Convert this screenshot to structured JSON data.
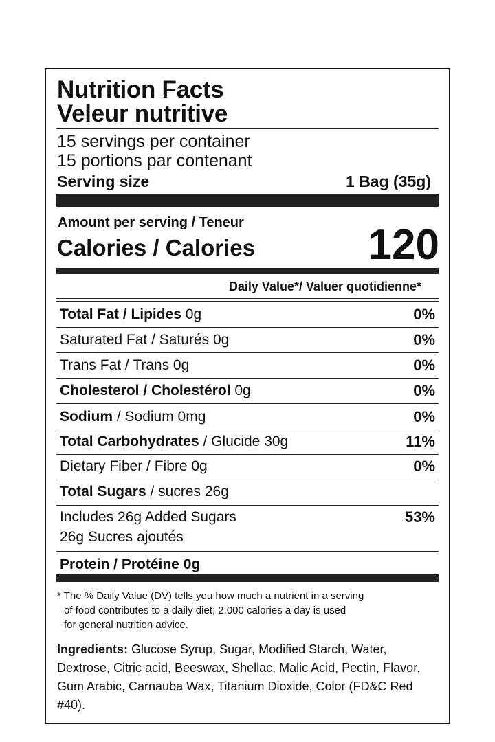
{
  "header": {
    "title_en": "Nutrition Facts",
    "title_fr": "Veleur nutritive"
  },
  "servings": {
    "per_container_en": "15 servings per container",
    "per_container_fr": "15 portions par contenant",
    "size_label": "Serving size",
    "size_value": "1 Bag (35g)"
  },
  "calories": {
    "amount_label": "Amount per serving / Teneur",
    "label": "Calories / Calories",
    "value": "120"
  },
  "daily_value_header": "Daily Value*/ Valuer quotidienne*",
  "nutrients": [
    {
      "bold": "Total Fat / Lipides",
      "rest": " 0g",
      "dv": "0%"
    },
    {
      "bold": "",
      "rest": "Saturated Fat / Saturés 0g",
      "dv": "0%"
    },
    {
      "bold": "",
      "rest": "Trans Fat / Trans 0g",
      "dv": "0%"
    },
    {
      "bold": "Cholesterol / Cholestérol",
      "rest": " 0g",
      "dv": "0%"
    },
    {
      "bold": "Sodium",
      "rest": " / Sodium 0mg",
      "dv": "0%"
    },
    {
      "bold": "Total Carbohydrates",
      "rest": " / Glucide 30g",
      "dv": "11%"
    },
    {
      "bold": "",
      "rest": "Dietary Fiber / Fibre 0g",
      "dv": "0%"
    },
    {
      "bold": "Total Sugars",
      "rest": " / sucres 26g",
      "dv": ""
    },
    {
      "bold": "",
      "rest": "Includes 26g Added Sugars",
      "rest2": "26g Sucres ajoutés",
      "dv": "53%"
    },
    {
      "bold": "Protein / Protéine 0g",
      "rest": "",
      "dv": ""
    }
  ],
  "footnote": {
    "line1": "* The % Daily Value (DV) tells you how much a nutrient in a serving",
    "line2": "of food contributes to a daily diet, 2,000 calories a day is used",
    "line3": "for general nutrition advice."
  },
  "ingredients": {
    "label": "Ingredients:",
    "text": " Glucose Syrup, Sugar, Modified Starch, Water, Dextrose, Citric acid, Beeswax, Shellac, Malic Acid, Pectin, Flavor, Gum Arabic, Carnauba Wax, Titanium Dioxide, Color (FD&C Red #40)."
  }
}
